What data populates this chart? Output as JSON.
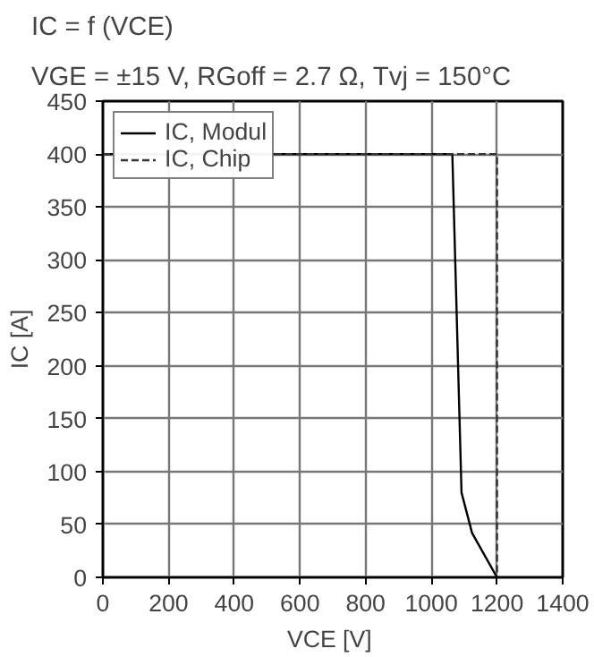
{
  "chart_data": {
    "type": "line",
    "title": "IC = f (VCE)",
    "subtitle": "VGE = ±15 V, RGoff = 2.7 Ω, Tvj = 150°C",
    "xlabel": "VCE  [V]",
    "ylabel": "IC [A]",
    "series": [
      {
        "name": "IC, Modul",
        "color": "#000000",
        "line_style": "solid",
        "x": [
          0,
          1064,
          1092,
          1124,
          1200
        ],
        "values": [
          400,
          400,
          80,
          42,
          0
        ]
      },
      {
        "name": "IC, Chip",
        "color": "#333333",
        "line_style": "dashed",
        "x": [
          0,
          1200,
          1200
        ],
        "values": [
          400,
          400,
          0
        ]
      }
    ],
    "xlim": [
      0,
      1400
    ],
    "ylim": [
      0,
      450
    ],
    "xticks": [
      0,
      200,
      400,
      600,
      800,
      1000,
      1200,
      1400
    ],
    "yticks": [
      0,
      50,
      100,
      150,
      200,
      250,
      300,
      350,
      400,
      450
    ],
    "grid": true,
    "legend": "top left",
    "marker": "none"
  }
}
